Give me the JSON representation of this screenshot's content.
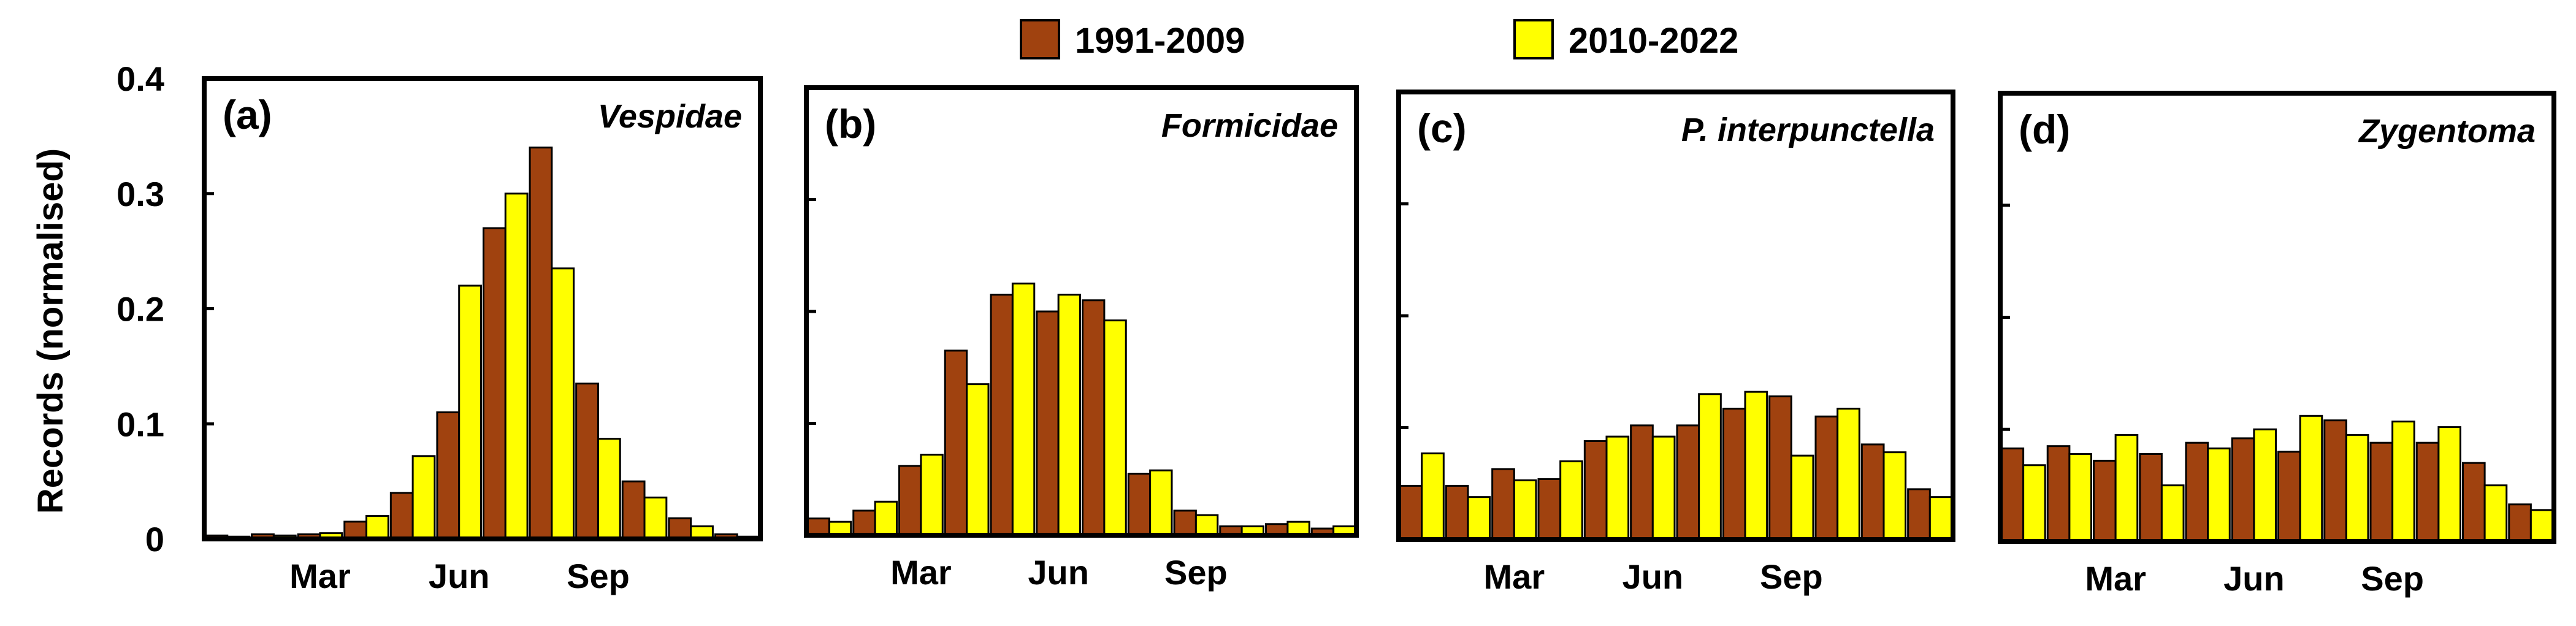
{
  "legend": [
    {
      "label": "1991-2009",
      "color": "#A0420F"
    },
    {
      "label": "2010-2022",
      "color": "#FFFF00"
    }
  ],
  "ylabel": "Records (normalised)",
  "yticks": [
    {
      "value": 0,
      "label": "0"
    },
    {
      "value": 0.1,
      "label": "0.1"
    },
    {
      "value": 0.2,
      "label": "0.2"
    },
    {
      "value": 0.3,
      "label": "0.3"
    },
    {
      "value": 0.4,
      "label": "0.4"
    }
  ],
  "xticks": [
    {
      "month": 3,
      "label": "Mar"
    },
    {
      "month": 6,
      "label": "Jun"
    },
    {
      "month": 9,
      "label": "Sep"
    }
  ],
  "chart_data": [
    {
      "type": "bar",
      "panel": "(a)",
      "title": "Vespidae",
      "categories": [
        1,
        2,
        3,
        4,
        5,
        6,
        7,
        8,
        9,
        10,
        11,
        12
      ],
      "ylim": [
        0,
        0.4
      ],
      "series": [
        {
          "name": "1991-2009",
          "values": [
            0.003,
            0.004,
            0.004,
            0.015,
            0.04,
            0.11,
            0.27,
            0.34,
            0.135,
            0.05,
            0.018,
            0.004
          ]
        },
        {
          "name": "2010-2022",
          "values": [
            0.002,
            0.003,
            0.005,
            0.02,
            0.072,
            0.22,
            0.3,
            0.235,
            0.087,
            0.036,
            0.011,
            0.002
          ]
        }
      ]
    },
    {
      "type": "bar",
      "panel": "(b)",
      "title": "Formicidae",
      "categories": [
        1,
        2,
        3,
        4,
        5,
        6,
        7,
        8,
        9,
        10,
        11,
        12
      ],
      "ylim": [
        0,
        0.4
      ],
      "series": [
        {
          "name": "1991-2009",
          "values": [
            0.015,
            0.022,
            0.062,
            0.165,
            0.215,
            0.2,
            0.21,
            0.055,
            0.022,
            0.008,
            0.01,
            0.006
          ]
        },
        {
          "name": "2010-2022",
          "values": [
            0.012,
            0.03,
            0.072,
            0.135,
            0.225,
            0.215,
            0.192,
            0.058,
            0.018,
            0.008,
            0.012,
            0.008
          ]
        }
      ]
    },
    {
      "type": "bar",
      "panel": "(c)",
      "title": "P. interpunctella",
      "categories": [
        1,
        2,
        3,
        4,
        5,
        6,
        7,
        8,
        9,
        10,
        11,
        12
      ],
      "ylim": [
        0,
        0.4
      ],
      "series": [
        {
          "name": "1991-2009",
          "values": [
            0.048,
            0.048,
            0.063,
            0.054,
            0.088,
            0.102,
            0.102,
            0.117,
            0.128,
            0.11,
            0.085,
            0.045
          ]
        },
        {
          "name": "2010-2022",
          "values": [
            0.077,
            0.038,
            0.053,
            0.07,
            0.092,
            0.092,
            0.13,
            0.132,
            0.075,
            0.117,
            0.078,
            0.038
          ]
        }
      ]
    },
    {
      "type": "bar",
      "panel": "(d)",
      "title": "Zygentoma",
      "categories": [
        1,
        2,
        3,
        4,
        5,
        6,
        7,
        8,
        9,
        10,
        11,
        12
      ],
      "ylim": [
        0,
        0.4
      ],
      "series": [
        {
          "name": "1991-2009",
          "values": [
            0.083,
            0.085,
            0.072,
            0.078,
            0.088,
            0.092,
            0.08,
            0.108,
            0.088,
            0.088,
            0.07,
            0.033
          ]
        },
        {
          "name": "2010-2022",
          "values": [
            0.068,
            0.078,
            0.095,
            0.05,
            0.083,
            0.1,
            0.112,
            0.095,
            0.107,
            0.102,
            0.05,
            0.028
          ]
        }
      ]
    }
  ]
}
